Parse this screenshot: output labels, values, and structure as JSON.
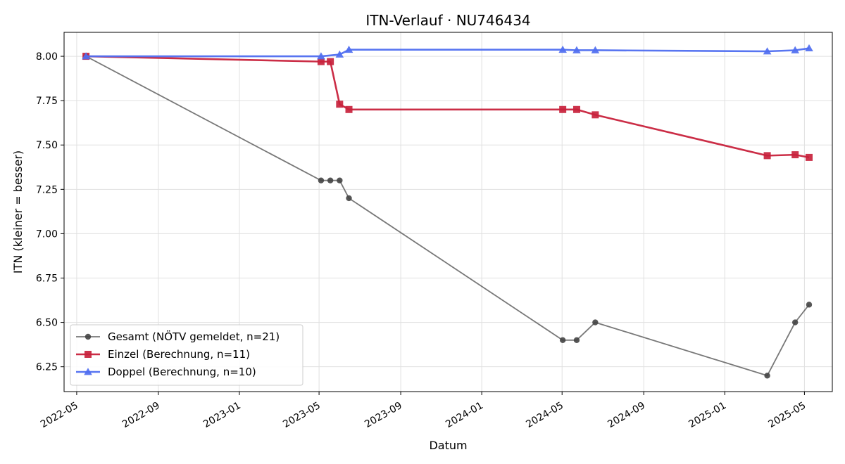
{
  "chart_data": {
    "type": "line",
    "title": "ITN-Verlauf · NU746434",
    "xlabel": "Datum",
    "ylabel": "ITN  (kleiner = besser)",
    "x_axis_type": "date",
    "xlim": [
      "2022-04-12",
      "2025-06-12"
    ],
    "ylim": [
      6.11,
      8.135
    ],
    "yticks": [
      6.25,
      6.5,
      6.75,
      7.0,
      7.25,
      7.5,
      7.75,
      8.0
    ],
    "yticks_labels": [
      "6.25",
      "6.50",
      "6.75",
      "7.00",
      "7.25",
      "7.50",
      "7.75",
      "8.00"
    ],
    "xticks": [
      "2022-05-01",
      "2022-09-01",
      "2023-01-01",
      "2023-05-01",
      "2023-09-01",
      "2024-01-01",
      "2024-05-01",
      "2024-09-01",
      "2025-01-01",
      "2025-05-01"
    ],
    "xticks_labels": [
      "2022-05",
      "2022-09",
      "2023-01",
      "2023-05",
      "2023-09",
      "2024-01",
      "2024-05",
      "2024-09",
      "2025-01",
      "2025-05"
    ],
    "grid": true,
    "legend_position": "bottom-left",
    "series": [
      {
        "name": "Gesamt (NÖTV gemeldet, n=21)",
        "color": "#444444",
        "marker": "circle",
        "points": [
          {
            "x": "2022-05-15",
            "y": 8.0
          },
          {
            "x": "2023-05-04",
            "y": 7.3
          },
          {
            "x": "2023-05-18",
            "y": 7.3
          },
          {
            "x": "2023-06-01",
            "y": 7.3
          },
          {
            "x": "2023-06-15",
            "y": 7.2
          },
          {
            "x": "2024-05-02",
            "y": 6.4
          },
          {
            "x": "2024-05-23",
            "y": 6.4
          },
          {
            "x": "2024-06-20",
            "y": 6.5
          },
          {
            "x": "2025-03-06",
            "y": 6.2
          },
          {
            "x": "2025-04-17",
            "y": 6.5
          },
          {
            "x": "2025-05-08",
            "y": 6.6
          }
        ]
      },
      {
        "name": "Einzel (Berechnung, n=11)",
        "color": "#c8223c",
        "marker": "square",
        "points": [
          {
            "x": "2022-05-15",
            "y": 8.0
          },
          {
            "x": "2023-05-04",
            "y": 7.97
          },
          {
            "x": "2023-05-18",
            "y": 7.97
          },
          {
            "x": "2023-06-01",
            "y": 7.73
          },
          {
            "x": "2023-06-15",
            "y": 7.7
          },
          {
            "x": "2024-05-02",
            "y": 7.7
          },
          {
            "x": "2024-05-23",
            "y": 7.7
          },
          {
            "x": "2024-06-20",
            "y": 7.67
          },
          {
            "x": "2025-03-06",
            "y": 7.44
          },
          {
            "x": "2025-04-17",
            "y": 7.445
          },
          {
            "x": "2025-05-08",
            "y": 7.43
          }
        ]
      },
      {
        "name": "Doppel (Berechnung, n=10)",
        "color": "#4f6ef0",
        "marker": "triangle",
        "points": [
          {
            "x": "2022-05-15",
            "y": 8.0
          },
          {
            "x": "2023-05-04",
            "y": 8.0
          },
          {
            "x": "2023-06-01",
            "y": 8.01
          },
          {
            "x": "2023-06-15",
            "y": 8.037
          },
          {
            "x": "2024-05-02",
            "y": 8.037
          },
          {
            "x": "2024-05-23",
            "y": 8.034
          },
          {
            "x": "2024-06-20",
            "y": 8.034
          },
          {
            "x": "2025-03-06",
            "y": 8.028
          },
          {
            "x": "2025-04-17",
            "y": 8.034
          },
          {
            "x": "2025-05-08",
            "y": 8.045
          }
        ]
      }
    ]
  }
}
